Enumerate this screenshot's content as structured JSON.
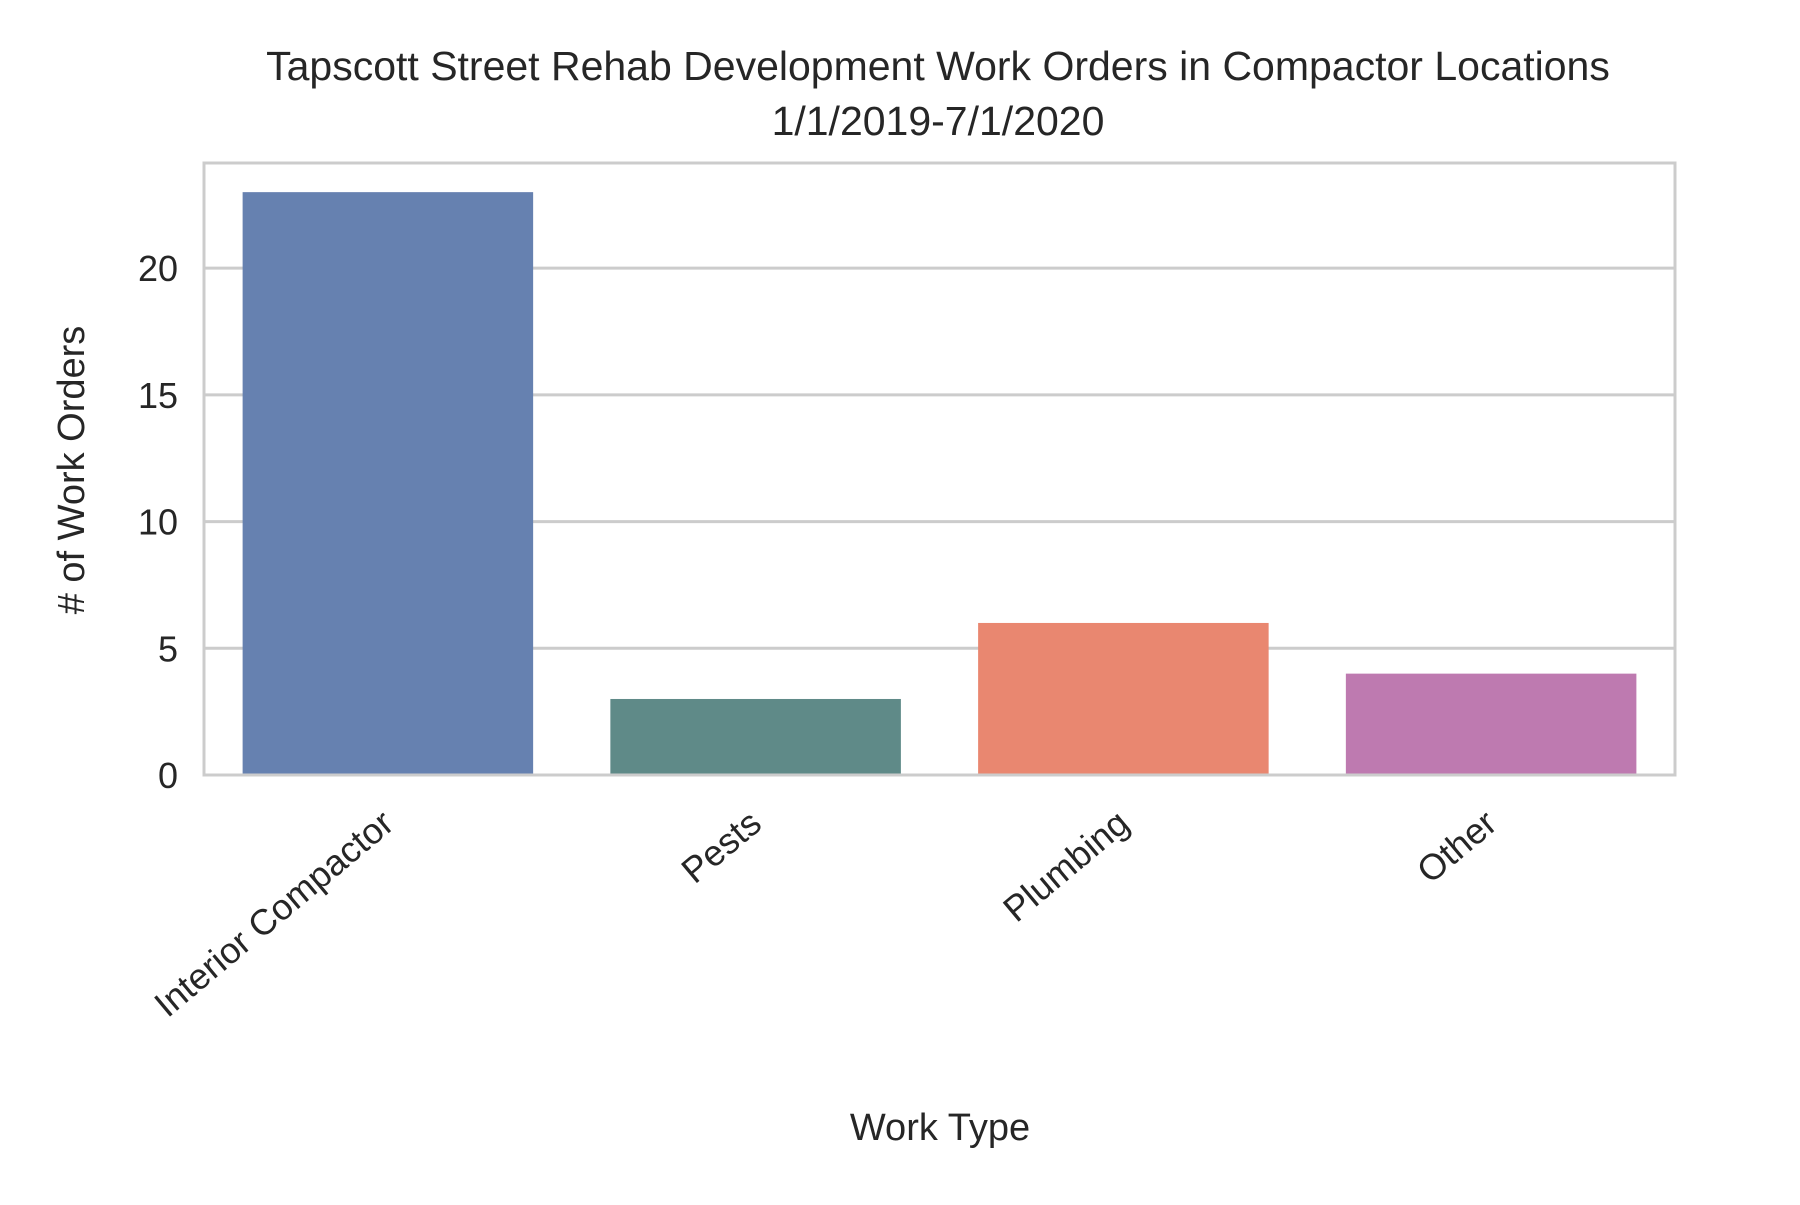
{
  "chart_data": {
    "type": "bar",
    "title": "Tapscott Street Rehab Development Work Orders in Compactor Locations",
    "subtitle": "1/1/2019-7/1/2020",
    "xlabel": "Work Type",
    "ylabel": "# of Work Orders",
    "categories": [
      "Interior Compactor",
      "Pests",
      "Plumbing",
      "Other"
    ],
    "values": [
      23,
      3,
      6,
      4
    ],
    "colors": [
      "#6681B0",
      "#5F8A88",
      "#E98770",
      "#BE7AB0"
    ],
    "ylim": [
      0,
      24.15
    ],
    "yticks": [
      0,
      5,
      10,
      15,
      20
    ],
    "ytick_labels": [
      "0",
      "5",
      "10",
      "15",
      "20"
    ],
    "grid": "horizontal",
    "legend": "none"
  }
}
